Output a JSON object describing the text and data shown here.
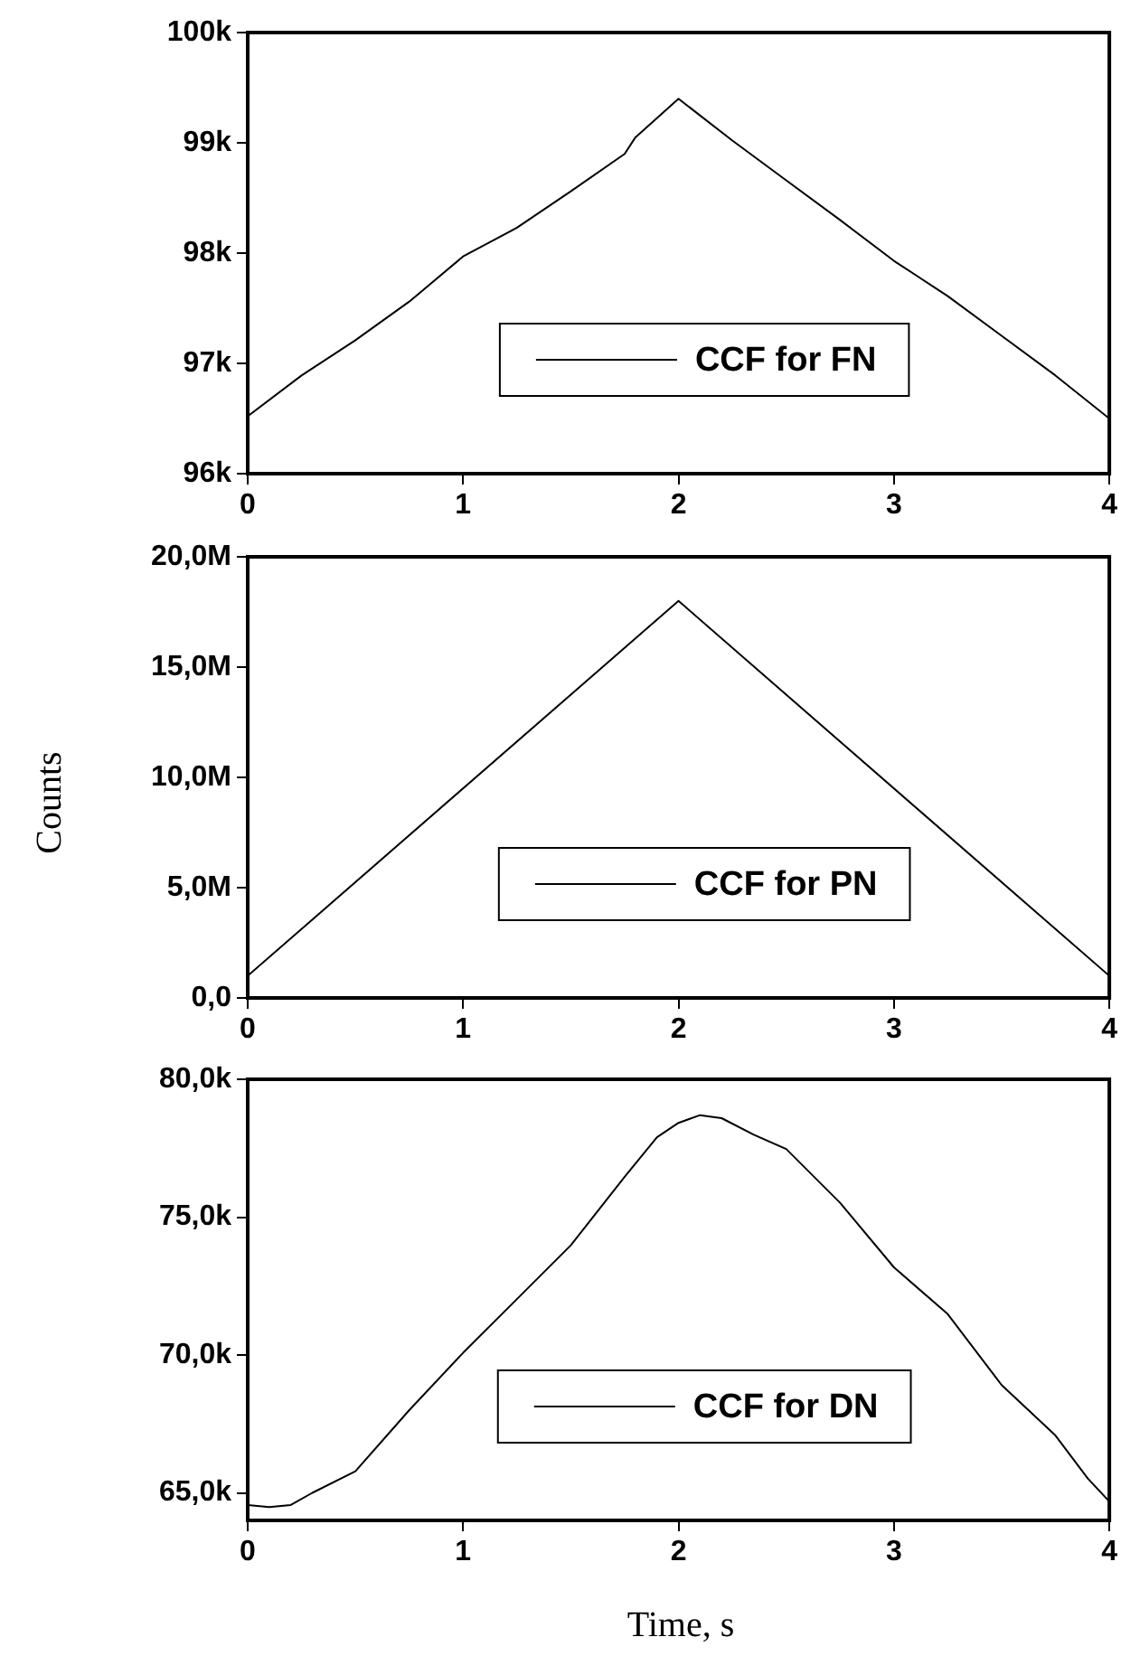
{
  "chart_data": [
    {
      "type": "line",
      "x": [
        0,
        0.25,
        0.5,
        0.75,
        1,
        1.25,
        1.5,
        1.75,
        1.8,
        2,
        2.25,
        2.5,
        2.75,
        3,
        3.25,
        3.5,
        3.75,
        4
      ],
      "xlim": [
        0,
        4
      ],
      "xticks": [
        0,
        1,
        2,
        3,
        4
      ],
      "ylim": [
        96000,
        100000
      ],
      "yticks": [
        {
          "value": 96000,
          "label": "96k"
        },
        {
          "value": 97000,
          "label": "97k"
        },
        {
          "value": 98000,
          "label": "98k"
        },
        {
          "value": 99000,
          "label": "99k"
        },
        {
          "value": 100000,
          "label": "100k"
        }
      ],
      "legend": "bottom",
      "grid": false,
      "series": [
        {
          "name": "CCF for FN",
          "color": "#000000",
          "values": [
            96520,
            96890,
            97210,
            97560,
            97970,
            98230,
            98560,
            98900,
            99050,
            99400,
            99020,
            98660,
            98300,
            97930,
            97610,
            97250,
            96890,
            96500
          ]
        }
      ]
    },
    {
      "type": "line",
      "x": [
        0,
        2,
        4
      ],
      "xlim": [
        0,
        4
      ],
      "xticks": [
        0,
        1,
        2,
        3,
        4
      ],
      "ylim": [
        0,
        20000000
      ],
      "yticks": [
        {
          "value": 0,
          "label": "0,0"
        },
        {
          "value": 5000000,
          "label": "5,0M"
        },
        {
          "value": 10000000,
          "label": "10,0M"
        },
        {
          "value": 15000000,
          "label": "15,0M"
        },
        {
          "value": 20000000,
          "label": "20,0M"
        }
      ],
      "ylabel": "Counts",
      "legend": "bottom",
      "grid": false,
      "series": [
        {
          "name": "CCF for PN",
          "color": "#000000",
          "values": [
            1000000,
            18000000,
            1000000
          ]
        }
      ]
    },
    {
      "type": "line",
      "x": [
        0,
        0.1,
        0.2,
        0.3,
        0.5,
        0.75,
        1,
        1.25,
        1.5,
        1.75,
        1.9,
        2,
        2.1,
        2.2,
        2.35,
        2.5,
        2.75,
        3,
        3.25,
        3.5,
        3.75,
        3.9,
        4
      ],
      "xlim": [
        0,
        4
      ],
      "xticks": [
        0,
        1,
        2,
        3,
        4
      ],
      "ylim": [
        64000,
        80000
      ],
      "yticks": [
        {
          "value": 65000,
          "label": "65,0k"
        },
        {
          "value": 70000,
          "label": "70,0k"
        },
        {
          "value": 75000,
          "label": "75,0k"
        },
        {
          "value": 80000,
          "label": "80,0k"
        }
      ],
      "xlabel": "Time, s",
      "legend": "bottom",
      "grid": false,
      "series": [
        {
          "name": "CCF for DN",
          "color": "#000000",
          "values": [
            64560,
            64480,
            64560,
            65000,
            65780,
            68000,
            70080,
            72030,
            73980,
            76460,
            77900,
            78420,
            78700,
            78590,
            77990,
            77470,
            75520,
            73180,
            71480,
            68910,
            67080,
            65520,
            64690
          ]
        }
      ]
    }
  ]
}
